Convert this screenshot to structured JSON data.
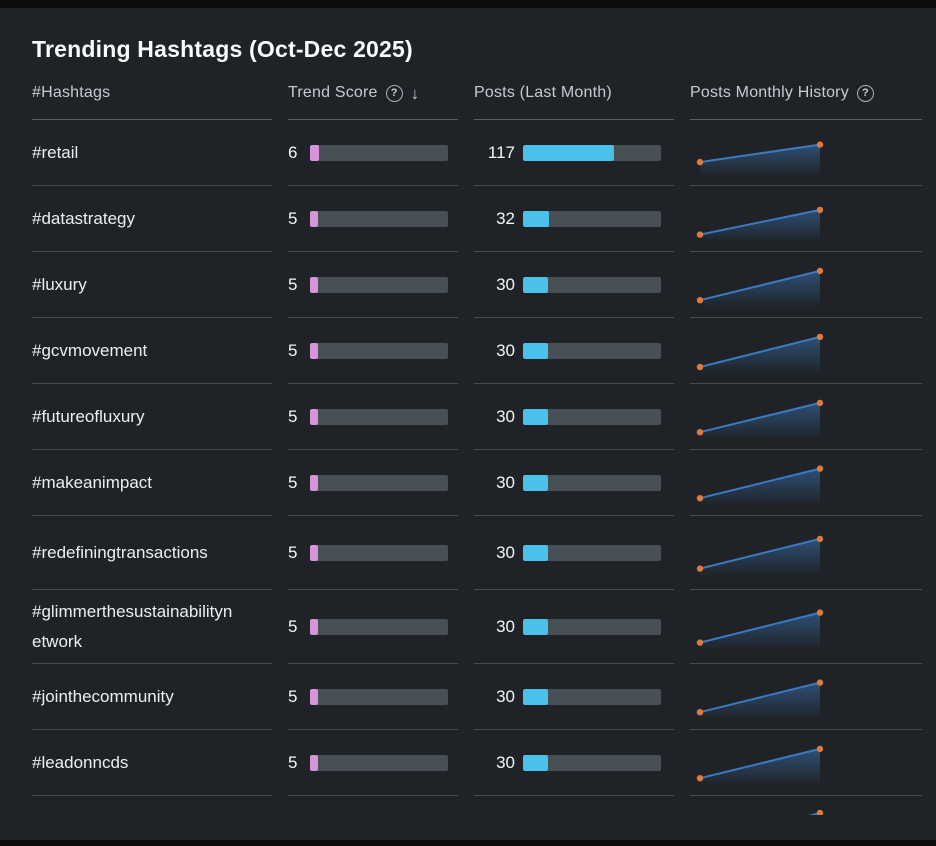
{
  "page": {
    "bg": "#0b0c0e",
    "card_bg": "#1f2327"
  },
  "title": "Trending Hashtags (Oct-Dec 2025)",
  "columns": {
    "hashtags": "#Hashtags",
    "trend_score": "Trend Score",
    "posts": "Posts (Last Month)",
    "history": "Posts Monthly History"
  },
  "icons": {
    "help": "?",
    "sort_desc": "↓"
  },
  "colors": {
    "trend_fill": "#d794db",
    "posts_fill": "#4bc0e8",
    "bar_track": "#485056",
    "spark_line": "#3b79c0",
    "spark_fill_top": "#3e7cc2",
    "spark_dot": "#df7a3c"
  },
  "rows": [
    {
      "hashtag": "#retail",
      "trend_score": 6,
      "trend_pct": 6.5,
      "posts": 117,
      "posts_pct": 66,
      "spark": [
        26,
        72
      ]
    },
    {
      "hashtag": "#datastrategy",
      "trend_score": 5,
      "trend_pct": 5.5,
      "posts": 32,
      "posts_pct": 19,
      "spark": [
        9,
        74
      ]
    },
    {
      "hashtag": "#luxury",
      "trend_score": 5,
      "trend_pct": 5.5,
      "posts": 30,
      "posts_pct": 18,
      "spark": [
        10,
        87
      ]
    },
    {
      "hashtag": "#gcvmovement",
      "trend_score": 5,
      "trend_pct": 5.5,
      "posts": 30,
      "posts_pct": 18,
      "spark": [
        8,
        87
      ]
    },
    {
      "hashtag": "#futureofluxury",
      "trend_score": 5,
      "trend_pct": 5.5,
      "posts": 30,
      "posts_pct": 18,
      "spark": [
        10,
        87
      ]
    },
    {
      "hashtag": "#makeanimpact",
      "trend_score": 5,
      "trend_pct": 5.5,
      "posts": 30,
      "posts_pct": 18,
      "spark": [
        10,
        88
      ]
    },
    {
      "hashtag": "#redefiningtransactions",
      "trend_score": 5,
      "trend_pct": 5.5,
      "posts": 30,
      "posts_pct": 18,
      "spark": [
        9,
        87
      ]
    },
    {
      "hashtag": "#glimmerthesustainabilitynetwork",
      "trend_score": 5,
      "trend_pct": 5.5,
      "posts": 30,
      "posts_pct": 18,
      "spark": [
        9,
        88
      ]
    },
    {
      "hashtag": "#jointhecommunity",
      "trend_score": 5,
      "trend_pct": 5.5,
      "posts": 30,
      "posts_pct": 18,
      "spark": [
        10,
        88
      ]
    },
    {
      "hashtag": "#leadonncds",
      "trend_score": 5,
      "trend_pct": 5.5,
      "posts": 30,
      "posts_pct": 18,
      "spark": [
        10,
        87
      ]
    }
  ],
  "partial_row": {
    "spark": [
      10,
      92
    ]
  }
}
